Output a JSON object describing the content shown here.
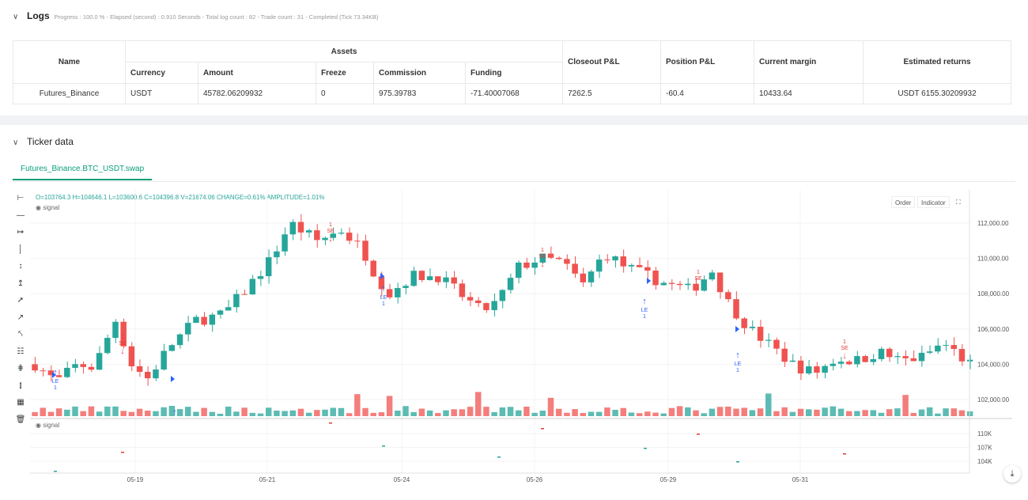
{
  "logs": {
    "title": "Logs",
    "meta": "Progress : 100.0 % - Elapsed (second) : 0.910  Seconds - Total log count : 82 - Trade count : 31 - Completed (Tick 73.34KB)",
    "headers": {
      "name": "Name",
      "assets": "Assets",
      "currency": "Currency",
      "amount": "Amount",
      "freeze": "Freeze",
      "commission": "Commission",
      "funding": "Funding",
      "closeout": "Closeout P&L",
      "position": "Position P&L",
      "margin": "Current margin",
      "returns": "Estimated returns"
    },
    "row": {
      "name": "Futures_Binance",
      "currency": "USDT",
      "amount": "45782.06209932",
      "freeze": "0",
      "commission": "975.39783",
      "funding": "-71.40007068",
      "closeout": "7262.5",
      "position": "-60.4",
      "margin": "10433.64",
      "returns": "USDT 6155.30209932"
    }
  },
  "ticker": {
    "title": "Ticker data",
    "tab": "Futures_Binance.BTC_USDT.swap",
    "ohlc": {
      "o": "O=103764.3",
      "h": "H=104646.1",
      "l": "L=103600.6",
      "c": "C=104396.8",
      "v": "V=21674.06",
      "change": "CHANGE=0.61%",
      "amp": "AMPLITUDE=1.01%"
    },
    "signal_label": "signal",
    "order_btn": "Order",
    "indicator_btn": "Indicator",
    "price_ticks": [
      "112,000.00",
      "110,000.00",
      "108,000.00",
      "106,000.00",
      "104,000.00",
      "102,000.00"
    ],
    "signal_ticks": [
      "110K",
      "107K",
      "104K"
    ],
    "date_ticks": [
      "05-19",
      "05-21",
      "05-24",
      "05-26",
      "05-29",
      "05-31"
    ],
    "markers": [
      {
        "type": "LE",
        "count": "1"
      },
      {
        "type": "SE",
        "count": "1"
      },
      {
        "type": "SE",
        "count": "1"
      },
      {
        "type": "LE",
        "count": "1"
      },
      {
        "type": "SE",
        "count": "1"
      },
      {
        "type": "LE",
        "count": "1"
      },
      {
        "type": "SE",
        "count": "1"
      },
      {
        "type": "LE",
        "count": "1"
      },
      {
        "type": "SE",
        "count": "1"
      }
    ],
    "colors": {
      "up": "#26a69a",
      "down": "#ef5350",
      "le": "#2962ff",
      "se": "#e53935"
    },
    "icons": [
      "crosshair-icon",
      "horizontal-line-icon",
      "horizontal-ray-icon",
      "vertical-line-icon",
      "vertical-segment-icon",
      "vertical-ray-icon",
      "trend-line-icon",
      "ray-icon",
      "extended-line-icon",
      "price-range-icon",
      "parallel-channel-icon",
      "pitchfork-icon",
      "calendar-icon",
      "trash-icon"
    ]
  }
}
